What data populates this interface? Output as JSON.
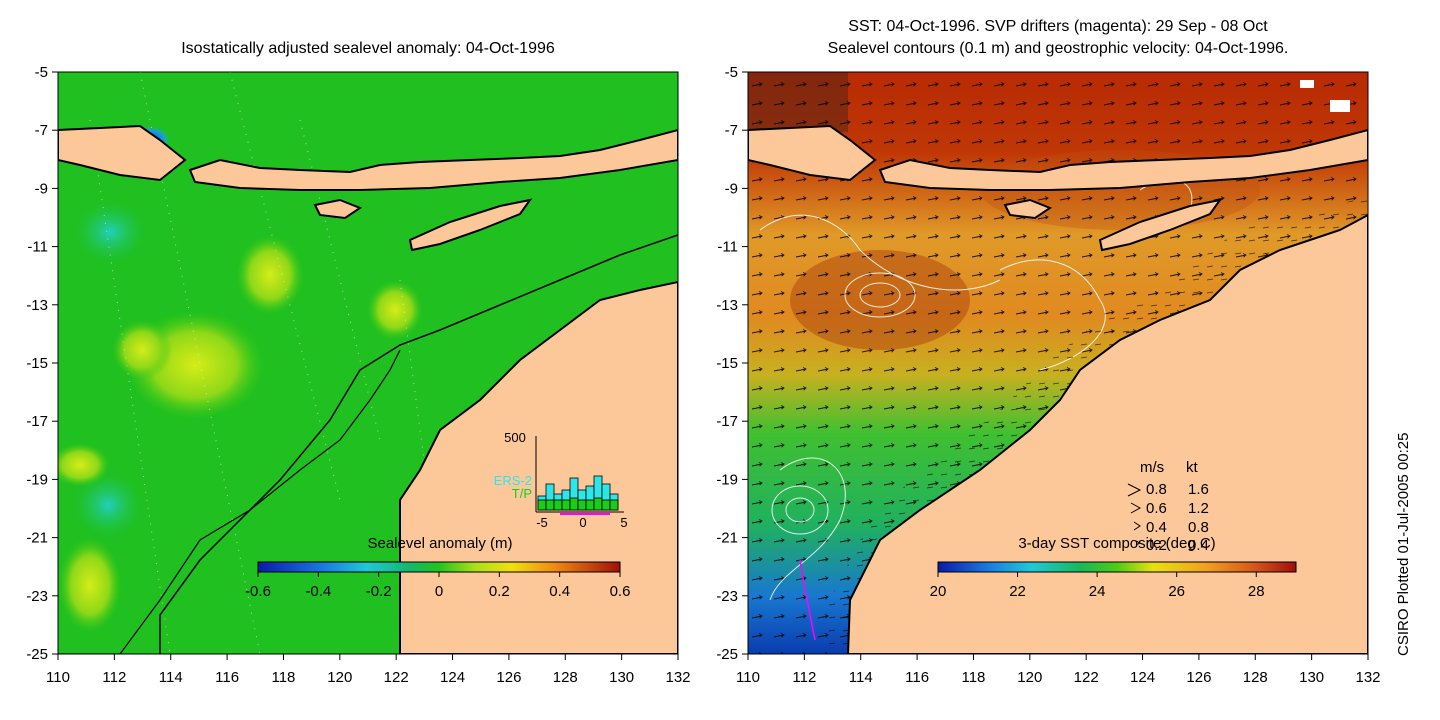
{
  "left_panel": {
    "title": "Isostatically adjusted sealevel anomaly: 04-Oct-1996",
    "colorbar_label": "Sealevel anomaly (m)",
    "colorbar_ticks": [
      "-0.6",
      "-0.4",
      "-0.2",
      "0",
      "0.2",
      "0.4",
      "0.6"
    ],
    "inset": {
      "y_max_label": "500",
      "series_labels": [
        "ERS-2",
        "T/P"
      ],
      "series_colors": [
        "#2fe6e6",
        "#18cc18"
      ],
      "x_ticks": [
        "-5",
        "0",
        "5"
      ]
    }
  },
  "right_panel": {
    "title_line1": "SST: 04-Oct-1996. SVP drifters (magenta): 29 Sep - 08 Oct",
    "title_line2": "Sealevel contours (0.1 m) and geostrophic velocity: 04-Oct-1996.",
    "colorbar_label": "3-day SST composite (deg C)",
    "colorbar_ticks": [
      "20",
      "22",
      "24",
      "26",
      "28"
    ],
    "velocity_key": {
      "header_ms": "m/s",
      "header_kt": "kt",
      "rows": [
        {
          "ms": "0.8",
          "kt": "1.6"
        },
        {
          "ms": "0.6",
          "kt": "1.2"
        },
        {
          "ms": "0.4",
          "kt": "0.8"
        },
        {
          "ms": "0.2",
          "kt": "0.4"
        }
      ]
    }
  },
  "axes": {
    "x_ticks": [
      "110",
      "112",
      "114",
      "116",
      "118",
      "120",
      "122",
      "124",
      "126",
      "128",
      "130",
      "132"
    ],
    "y_ticks": [
      "-5",
      "-7",
      "-9",
      "-11",
      "-13",
      "-15",
      "-17",
      "-19",
      "-21",
      "-23",
      "-25"
    ]
  },
  "credit": "CSIRO Plotted 01-Jul-2005 00:25",
  "colors": {
    "land": "#fcc89a",
    "ocean_green": "#1fc01f",
    "sst_orange": "#d8731c",
    "sst_red": "#b82a04",
    "coast": "#000000"
  }
}
